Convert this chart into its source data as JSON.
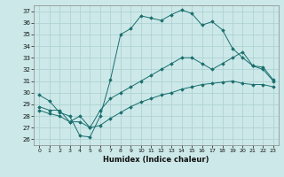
{
  "xlabel": "Humidex (Indice chaleur)",
  "xlim": [
    -0.5,
    23.5
  ],
  "ylim": [
    25.5,
    37.5
  ],
  "yticks": [
    26,
    27,
    28,
    29,
    30,
    31,
    32,
    33,
    34,
    35,
    36,
    37
  ],
  "xticks": [
    0,
    1,
    2,
    3,
    4,
    5,
    6,
    7,
    8,
    9,
    10,
    11,
    12,
    13,
    14,
    15,
    16,
    17,
    18,
    19,
    20,
    21,
    22,
    23
  ],
  "background_color": "#cce8e8",
  "grid_color": "#aacfcf",
  "line_color": "#1a6e6e",
  "line1_x": [
    0,
    1,
    2,
    3,
    4,
    5,
    6,
    7,
    8,
    9,
    10,
    11,
    12,
    13,
    14,
    15,
    16,
    17,
    18,
    19,
    20,
    21,
    22,
    23
  ],
  "line1_y": [
    29.8,
    29.3,
    28.3,
    28.0,
    26.3,
    26.2,
    28.0,
    31.1,
    35.0,
    35.5,
    36.6,
    36.4,
    36.2,
    36.7,
    37.1,
    36.8,
    35.8,
    36.1,
    35.4,
    33.8,
    33.0,
    32.3,
    32.2,
    31.1
  ],
  "line2_x": [
    0,
    1,
    2,
    3,
    4,
    5,
    6,
    7,
    8,
    9,
    10,
    11,
    12,
    13,
    14,
    15,
    16,
    17,
    18,
    19,
    20,
    21,
    22,
    23
  ],
  "line2_y": [
    28.8,
    28.5,
    28.5,
    27.5,
    28.0,
    27.0,
    28.5,
    29.5,
    30.0,
    30.5,
    31.0,
    31.5,
    32.0,
    32.5,
    33.0,
    33.0,
    32.5,
    32.0,
    32.5,
    33.0,
    33.5,
    32.3,
    32.0,
    31.0
  ],
  "line3_x": [
    0,
    1,
    2,
    3,
    4,
    5,
    6,
    7,
    8,
    9,
    10,
    11,
    12,
    13,
    14,
    15,
    16,
    17,
    18,
    19,
    20,
    21,
    22,
    23
  ],
  "line3_y": [
    28.5,
    28.2,
    28.0,
    27.5,
    27.5,
    27.0,
    27.2,
    27.8,
    28.3,
    28.8,
    29.2,
    29.5,
    29.8,
    30.0,
    30.3,
    30.5,
    30.7,
    30.8,
    30.9,
    31.0,
    30.8,
    30.7,
    30.7,
    30.5
  ]
}
